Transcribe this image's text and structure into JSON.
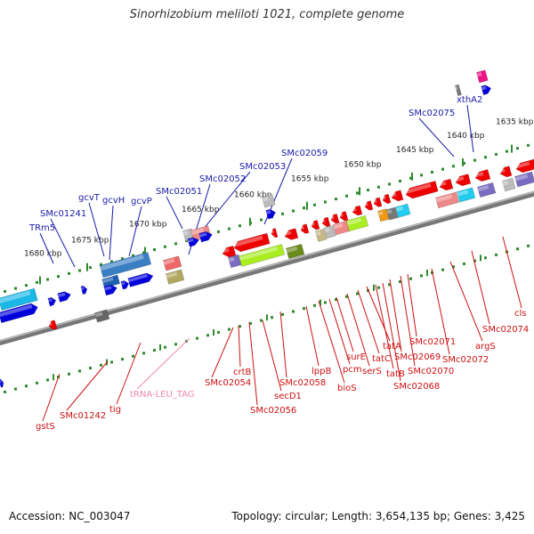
{
  "title": "Sinorhizobium meliloti 1021, complete genome",
  "footer": {
    "accession": "Accession: NC_003047",
    "topology": "Topology: circular; Length: 3,654,135 bp; Genes: 3,425"
  },
  "colors": {
    "backbone": "#777777",
    "dots": "#2d8a2d",
    "upper_label": "#1a1aaa",
    "lower_label": "#cc1111",
    "trna_label": "#ee88aa"
  },
  "scale_ticks": [
    "1680 kbp",
    "1675 kbp",
    "1670 kbp",
    "1665 kbp",
    "1660 kbp",
    "1655 kbp",
    "1650 kbp",
    "1645 kbp",
    "1640 kbp",
    "1635 kbp"
  ],
  "upper_labels": [
    "TRm5",
    "SMc01241",
    "gcvT",
    "gcvH",
    "gcvP",
    "SMc02051",
    "SMc02052",
    "SMc02053",
    "SMc02059",
    "SMc02075",
    "xthA2"
  ],
  "lower_labels": [
    "gstS",
    "SMc01242",
    "tig",
    "tRNA-LEU_TAG",
    "SMc02054",
    "crtB",
    "SMc02056",
    "secD1",
    "SMc02058",
    "lppB",
    "bioS",
    "pcm",
    "surE",
    "serS",
    "tatC",
    "tatA",
    "tatB",
    "SMc02068",
    "SMc02069",
    "SMc02070",
    "SMc02071",
    "SMc02072",
    "argS",
    "SMc02074",
    "cls"
  ]
}
